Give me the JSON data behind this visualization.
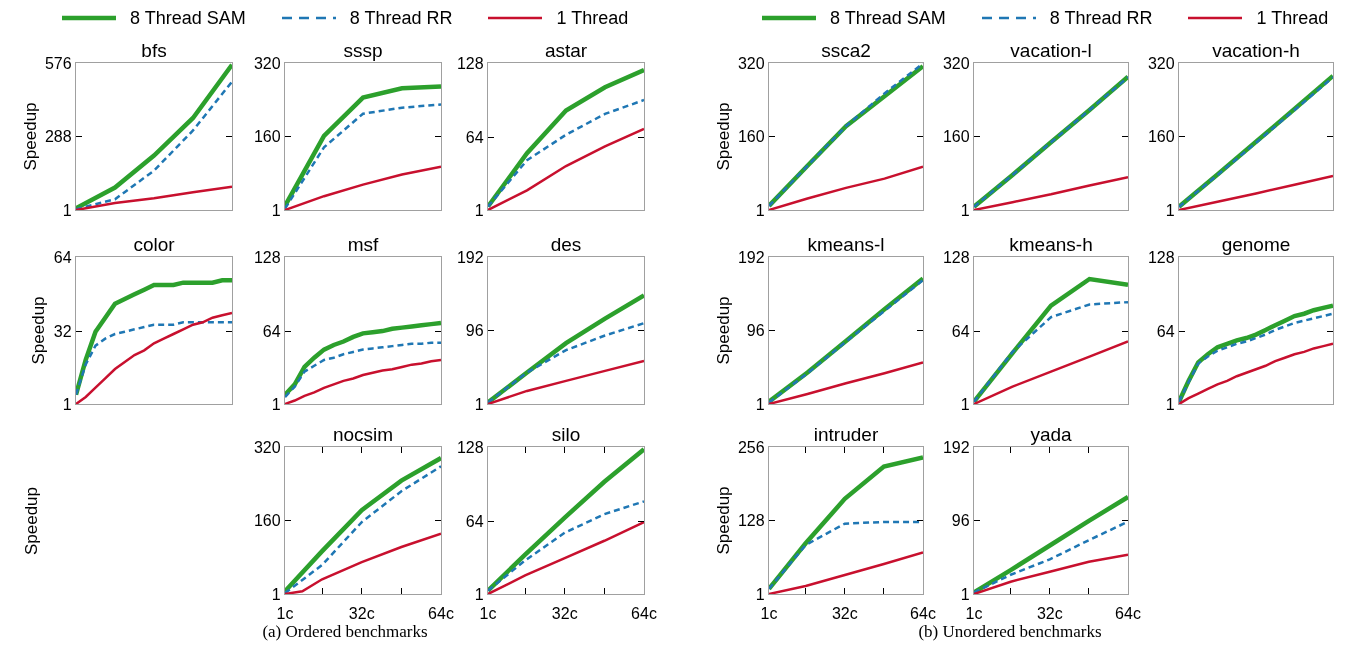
{
  "chart_data": [
    {
      "type": "line",
      "title": "bfs",
      "ylabel": "Speedup",
      "legend": "top",
      "categories": [
        null,
        null,
        null,
        null,
        null
      ],
      "ylim": [
        1,
        576
      ],
      "yticks": [
        1,
        288,
        576
      ],
      "tick_labels": "y",
      "series": [
        {
          "name": "8 Thread SAM",
          "color": "#2ca02c",
          "line_style": "solid",
          "values": [
            8,
            89,
            214,
            361,
            569
          ]
        },
        {
          "name": "8 Thread RR",
          "color": "#1f77b4",
          "line_style": "dashed",
          "values": [
            4,
            43,
            155,
            312,
            503
          ]
        },
        {
          "name": "1 Thread",
          "color": "#c8102e",
          "line_style": "solid",
          "values": [
            1,
            28,
            47,
            70,
            92
          ]
        }
      ]
    },
    {
      "type": "line",
      "title": "sssp",
      "categories": [
        null,
        null,
        null,
        null,
        null
      ],
      "ylim": [
        1,
        320
      ],
      "yticks": [
        1,
        160,
        320
      ],
      "tick_labels": "y",
      "series": [
        {
          "color": "#2ca02c",
          "line_style": "solid",
          "values": [
            10,
            162,
            245,
            265,
            269
          ]
        },
        {
          "color": "#1f77b4",
          "line_style": "dashed",
          "values": [
            4,
            137,
            210,
            223,
            230
          ]
        },
        {
          "color": "#c8102e",
          "line_style": "solid",
          "values": [
            1,
            31,
            56,
            78,
            95
          ]
        }
      ]
    },
    {
      "type": "line",
      "title": "astar",
      "categories": [
        null,
        null,
        null,
        null,
        null
      ],
      "ylim": [
        1,
        128
      ],
      "yticks": [
        1,
        64,
        128
      ],
      "tick_labels": "y",
      "series": [
        {
          "color": "#2ca02c",
          "line_style": "solid",
          "values": [
            4,
            50,
            87,
            107,
            122
          ]
        },
        {
          "color": "#1f77b4",
          "line_style": "dashed",
          "values": [
            4,
            44,
            66,
            84,
            96
          ]
        },
        {
          "color": "#c8102e",
          "line_style": "solid",
          "values": [
            1,
            18,
            39,
            56,
            71
          ]
        }
      ]
    },
    {
      "type": "line",
      "title": "color",
      "ylabel": "Speedup",
      "categories": [
        null,
        null,
        null,
        null,
        null,
        null,
        null,
        null,
        null,
        null,
        null,
        null,
        null,
        null,
        null,
        null,
        null
      ],
      "ylim": [
        1,
        64
      ],
      "yticks": [
        1,
        32,
        64
      ],
      "tick_labels": "y",
      "series": [
        {
          "color": "#2ca02c",
          "line_style": "solid",
          "values": [
            5,
            20,
            32,
            38,
            44,
            46,
            48,
            50,
            52,
            52,
            52,
            53,
            53,
            53,
            53,
            54,
            54
          ]
        },
        {
          "color": "#1f77b4",
          "line_style": "dashed",
          "values": [
            5,
            18,
            26,
            29,
            31,
            32,
            33,
            34,
            35,
            35,
            35,
            36,
            36,
            36,
            36,
            36,
            36
          ]
        },
        {
          "color": "#c8102e",
          "line_style": "solid",
          "values": [
            1,
            4,
            8,
            12,
            16,
            19,
            22,
            24,
            27,
            29,
            31,
            33,
            35,
            36,
            38,
            39,
            40
          ]
        }
      ]
    },
    {
      "type": "line",
      "title": "msf",
      "categories": [
        null,
        null,
        null,
        null,
        null,
        null,
        null,
        null,
        null,
        null,
        null,
        null,
        null,
        null,
        null,
        null,
        null
      ],
      "ylim": [
        1,
        128
      ],
      "yticks": [
        1,
        64,
        128
      ],
      "tick_labels": "y",
      "series": [
        {
          "color": "#2ca02c",
          "line_style": "solid",
          "values": [
            9,
            18,
            33,
            41,
            48,
            52,
            55,
            59,
            62,
            63,
            64,
            66,
            67,
            68,
            69,
            70,
            71
          ]
        },
        {
          "color": "#1f77b4",
          "line_style": "dashed",
          "values": [
            7,
            16,
            29,
            34,
            39,
            41,
            44,
            46,
            48,
            49,
            50,
            51,
            52,
            53,
            53,
            54,
            54
          ]
        },
        {
          "color": "#c8102e",
          "line_style": "solid",
          "values": [
            1,
            4,
            8,
            11,
            15,
            18,
            21,
            23,
            26,
            28,
            30,
            31,
            33,
            35,
            36,
            38,
            39
          ]
        }
      ]
    },
    {
      "type": "line",
      "title": "des",
      "categories": [
        null,
        null,
        null,
        null,
        null
      ],
      "ylim": [
        1,
        192
      ],
      "yticks": [
        1,
        96,
        192
      ],
      "tick_labels": "y",
      "series": [
        {
          "color": "#2ca02c",
          "line_style": "solid",
          "values": [
            3,
            42,
            80,
            112,
            142
          ]
        },
        {
          "color": "#1f77b4",
          "line_style": "dashed",
          "values": [
            3,
            42,
            71,
            90,
            106
          ]
        },
        {
          "color": "#c8102e",
          "line_style": "solid",
          "values": [
            1,
            18,
            31,
            44,
            57
          ]
        }
      ]
    },
    {
      "type": "other",
      "ylabel": "Speedup"
    },
    {
      "type": "line",
      "title": "nocsim",
      "x": [
        1,
        16,
        32,
        48,
        64
      ],
      "xlim": [
        1,
        64
      ],
      "xticks": [
        {
          "value": 1,
          "label": "1c"
        },
        {
          "value": 16,
          "label": null
        },
        {
          "value": 32,
          "label": "32c"
        },
        {
          "value": 48,
          "label": null
        },
        {
          "value": 64,
          "label": "64c"
        }
      ],
      "ylim": [
        1,
        320
      ],
      "yticks": [
        1,
        160,
        320
      ],
      "annotations": [
        "(a) Ordered benchmarks"
      ],
      "series": [
        {
          "color": "#2ca02c",
          "line_style": "solid",
          "values": [
            7,
            94,
            183,
            247,
            296
          ]
        },
        {
          "color": "#1f77b4",
          "line_style": "dashed",
          "values": [
            3,
            64,
            157,
            224,
            278
          ]
        },
        {
          "color": "#c8102e",
          "line_style": "solid",
          "x": [
            1,
            8,
            16,
            32,
            48,
            64
          ],
          "values": [
            1,
            7,
            33,
            70,
            103,
            132
          ]
        }
      ]
    },
    {
      "type": "line",
      "title": "silo",
      "x": [
        1,
        16,
        32,
        48,
        64
      ],
      "xlim": [
        1,
        64
      ],
      "xticks": [
        {
          "value": 1,
          "label": "1c"
        },
        {
          "value": 16,
          "label": null
        },
        {
          "value": 32,
          "label": "32c"
        },
        {
          "value": 48,
          "label": null
        },
        {
          "value": 64,
          "label": "64c"
        }
      ],
      "ylim": [
        1,
        128
      ],
      "yticks": [
        1,
        64,
        128
      ],
      "series": [
        {
          "color": "#2ca02c",
          "line_style": "solid",
          "values": [
            4,
            35,
            67,
            98,
            126
          ]
        },
        {
          "color": "#1f77b4",
          "line_style": "dashed",
          "values": [
            4,
            30,
            54,
            70,
            81
          ]
        },
        {
          "color": "#c8102e",
          "line_style": "solid",
          "values": [
            1,
            17,
            32,
            47,
            63
          ]
        }
      ]
    },
    {
      "type": "line",
      "title": "ssca2",
      "ylabel": "Speedup",
      "legend": "top",
      "categories": [
        null,
        null,
        null,
        null,
        null
      ],
      "ylim": [
        1,
        320
      ],
      "yticks": [
        1,
        160,
        320
      ],
      "tick_labels": "y",
      "series": [
        {
          "name": "8 Thread SAM",
          "color": "#2ca02c",
          "line_style": "solid",
          "values": [
            10,
            97,
            183,
            248,
            313
          ]
        },
        {
          "name": "8 Thread RR",
          "color": "#1f77b4",
          "line_style": "dashed",
          "values": [
            10,
            97,
            183,
            254,
            319
          ]
        },
        {
          "name": "1 Thread",
          "color": "#c8102e",
          "line_style": "solid",
          "values": [
            1,
            26,
            49,
            69,
            95
          ]
        }
      ]
    },
    {
      "type": "line",
      "title": "vacation-l",
      "categories": [
        null,
        null,
        null,
        null,
        null
      ],
      "ylim": [
        1,
        320
      ],
      "yticks": [
        1,
        160,
        320
      ],
      "tick_labels": "y",
      "series": [
        {
          "color": "#2ca02c",
          "line_style": "solid",
          "values": [
            8,
            77,
            148,
            218,
            290
          ]
        },
        {
          "color": "#1f77b4",
          "line_style": "dashed",
          "values": [
            8,
            77,
            148,
            218,
            289
          ]
        },
        {
          "color": "#c8102e",
          "line_style": "solid",
          "values": [
            1,
            18,
            35,
            54,
            72
          ]
        }
      ]
    },
    {
      "type": "line",
      "title": "vacation-h",
      "categories": [
        null,
        null,
        null,
        null,
        null
      ],
      "ylim": [
        1,
        320
      ],
      "yticks": [
        1,
        160,
        320
      ],
      "tick_labels": "y",
      "series": [
        {
          "color": "#2ca02c",
          "line_style": "solid",
          "values": [
            8,
            78,
            149,
            220,
            292
          ]
        },
        {
          "color": "#1f77b4",
          "line_style": "dashed",
          "values": [
            8,
            77,
            147,
            218,
            289
          ]
        },
        {
          "color": "#c8102e",
          "line_style": "solid",
          "values": [
            1,
            19,
            37,
            56,
            75
          ]
        }
      ]
    },
    {
      "type": "line",
      "title": "kmeans-l",
      "ylabel": "Speedup",
      "categories": [
        null,
        null,
        null,
        null,
        null
      ],
      "ylim": [
        1,
        192
      ],
      "yticks": [
        1,
        96,
        192
      ],
      "tick_labels": "y",
      "series": [
        {
          "color": "#2ca02c",
          "line_style": "solid",
          "values": [
            4,
            42,
            83,
            124,
            164
          ]
        },
        {
          "color": "#1f77b4",
          "line_style": "dashed",
          "values": [
            3,
            41,
            82,
            122,
            162
          ]
        },
        {
          "color": "#c8102e",
          "line_style": "solid",
          "values": [
            1,
            14,
            28,
            41,
            55
          ]
        }
      ]
    },
    {
      "type": "line",
      "title": "kmeans-h",
      "categories": [
        null,
        null,
        null,
        null,
        null
      ],
      "ylim": [
        1,
        128
      ],
      "yticks": [
        1,
        64,
        128
      ],
      "tick_labels": "y",
      "series": [
        {
          "color": "#2ca02c",
          "line_style": "solid",
          "values": [
            3,
            45,
            86,
            109,
            104
          ]
        },
        {
          "color": "#1f77b4",
          "line_style": "dashed",
          "values": [
            3,
            46,
            76,
            87,
            89
          ]
        },
        {
          "color": "#c8102e",
          "line_style": "solid",
          "values": [
            1,
            16,
            29,
            42,
            55
          ]
        }
      ]
    },
    {
      "type": "line",
      "title": "genome",
      "categories": [
        null,
        null,
        null,
        null,
        null,
        null,
        null,
        null,
        null,
        null,
        null,
        null,
        null,
        null,
        null,
        null,
        null
      ],
      "ylim": [
        1,
        128
      ],
      "yticks": [
        1,
        64,
        128
      ],
      "tick_labels": "y",
      "series": [
        {
          "color": "#2ca02c",
          "line_style": "solid",
          "values": [
            3,
            21,
            37,
            44,
            50,
            53,
            56,
            58,
            61,
            65,
            69,
            73,
            77,
            79,
            82,
            84,
            86
          ]
        },
        {
          "color": "#1f77b4",
          "line_style": "dashed",
          "values": [
            3,
            20,
            36,
            42,
            47,
            50,
            53,
            55,
            58,
            61,
            65,
            68,
            71,
            73,
            75,
            77,
            79
          ]
        },
        {
          "color": "#c8102e",
          "line_style": "solid",
          "values": [
            1,
            6,
            10,
            14,
            18,
            21,
            25,
            28,
            31,
            34,
            38,
            41,
            44,
            46,
            49,
            51,
            53
          ]
        }
      ]
    },
    {
      "type": "line",
      "title": "intruder",
      "ylabel": "Speedup",
      "x": [
        1,
        16,
        32,
        48,
        64
      ],
      "xlim": [
        1,
        64
      ],
      "xticks": [
        {
          "value": 1,
          "label": "1c"
        },
        {
          "value": 16,
          "label": null
        },
        {
          "value": 32,
          "label": "32c"
        },
        {
          "value": 48,
          "label": null
        },
        {
          "value": 64,
          "label": "64c"
        }
      ],
      "ylim": [
        1,
        256
      ],
      "yticks": [
        1,
        128,
        256
      ],
      "series": [
        {
          "color": "#2ca02c",
          "line_style": "solid",
          "values": [
            10,
            89,
            166,
            222,
            238
          ]
        },
        {
          "color": "#1f77b4",
          "line_style": "dashed",
          "values": [
            10,
            86,
            123,
            126,
            126
          ]
        },
        {
          "color": "#c8102e",
          "line_style": "solid",
          "values": [
            1,
            15,
            34,
            53,
            73
          ]
        }
      ]
    },
    {
      "type": "line",
      "title": "yada",
      "x": [
        1,
        16,
        32,
        48,
        64
      ],
      "xlim": [
        1,
        64
      ],
      "xticks": [
        {
          "value": 1,
          "label": "1c"
        },
        {
          "value": 16,
          "label": null
        },
        {
          "value": 32,
          "label": "32c"
        },
        {
          "value": 48,
          "label": null
        },
        {
          "value": 64,
          "label": "64c"
        }
      ],
      "ylim": [
        1,
        192
      ],
      "yticks": [
        1,
        96,
        192
      ],
      "annotations": [
        "(b) Unordered benchmarks"
      ],
      "series": [
        {
          "color": "#2ca02c",
          "line_style": "solid",
          "values": [
            3,
            32,
            64,
            96,
            127
          ]
        },
        {
          "color": "#1f77b4",
          "line_style": "dashed",
          "values": [
            3,
            26,
            46,
            71,
            95
          ]
        },
        {
          "color": "#c8102e",
          "line_style": "solid",
          "values": [
            1,
            17,
            30,
            43,
            52
          ]
        }
      ]
    }
  ]
}
